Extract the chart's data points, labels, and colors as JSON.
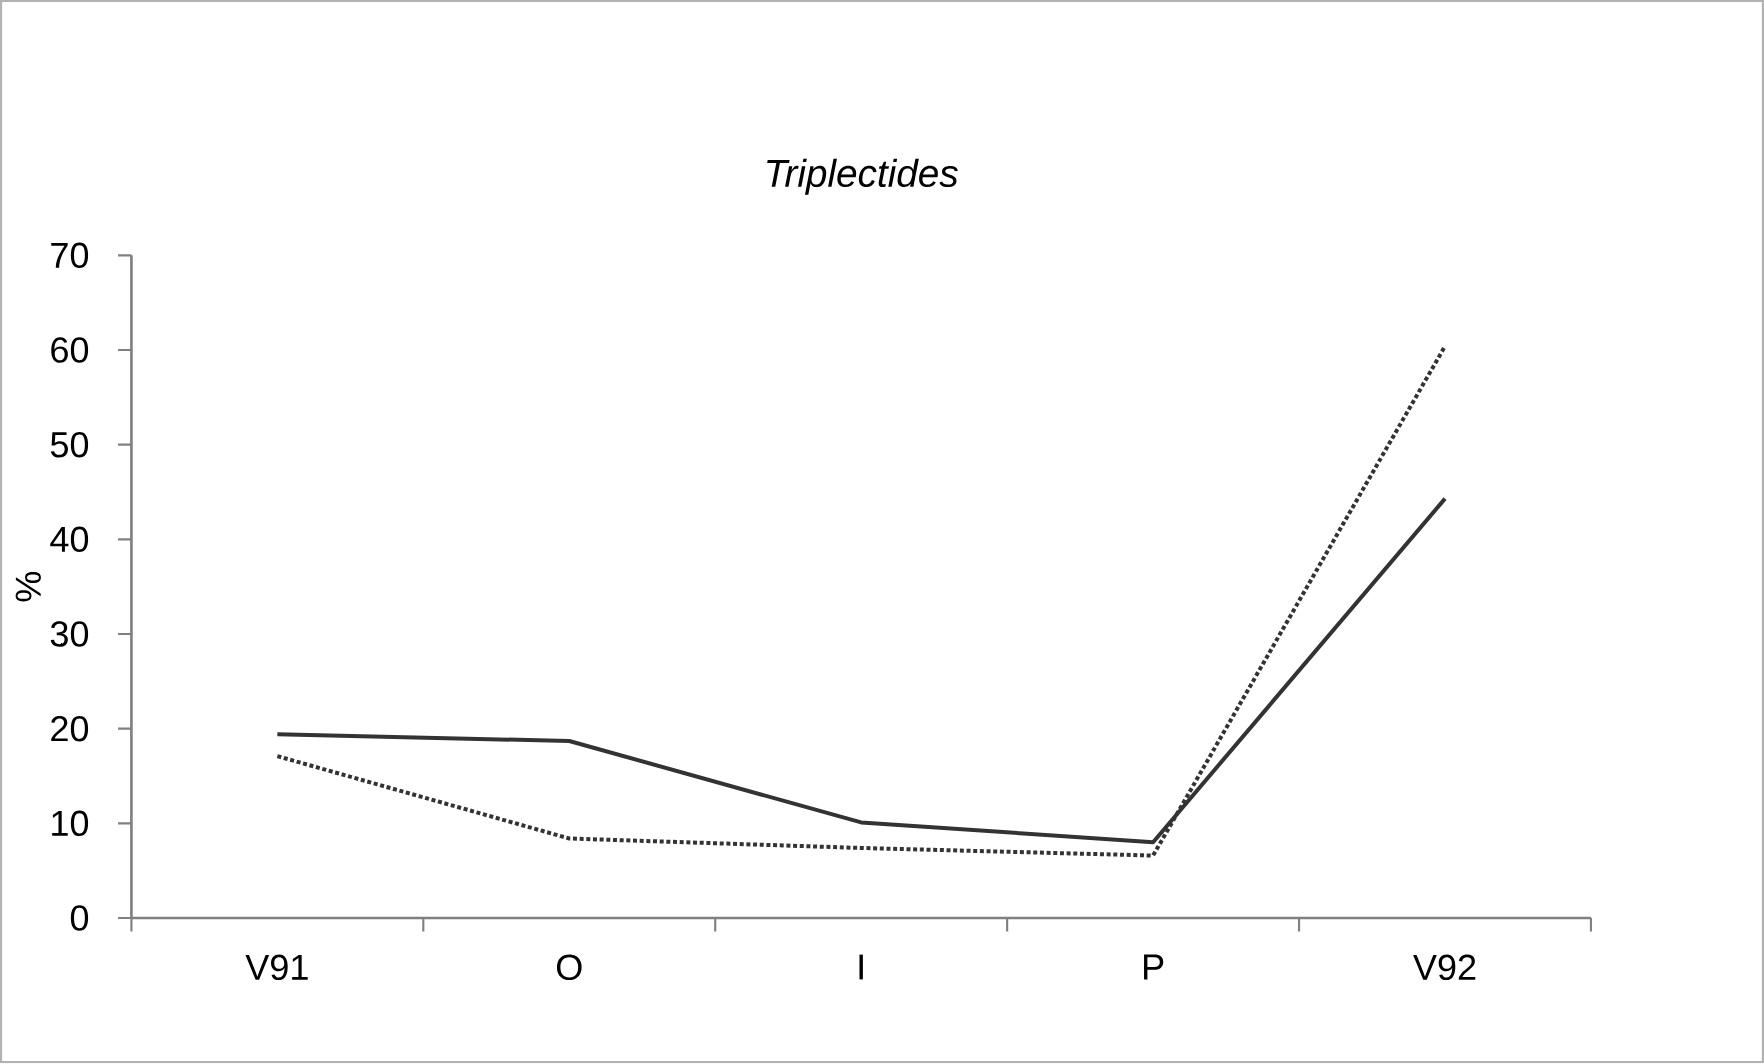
{
  "chart_data": {
    "type": "line",
    "title": "*Triplectides*",
    "ylabel": "%",
    "categories": [
      "V91",
      "O",
      "I",
      "P",
      "V92"
    ],
    "series": [
      {
        "color": "#333333",
        "line_style": "solid",
        "values": [
          19.4,
          18.7,
          10.1,
          8.0,
          44.3
        ]
      },
      {
        "color": "#333333",
        "line_style": "dotted",
        "values": [
          17.1,
          8.4,
          7.4,
          6.6,
          60.4
        ]
      }
    ],
    "ylim": [
      0,
      70
    ],
    "yticks": [
      0,
      10,
      20,
      30,
      40,
      50,
      60,
      70
    ],
    "grid": false,
    "legend": false,
    "marker": "none"
  }
}
